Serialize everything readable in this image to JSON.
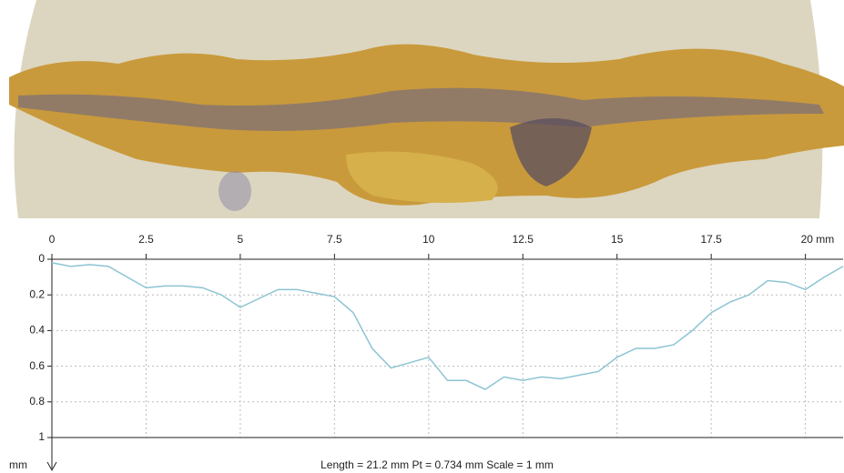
{
  "chart_data": {
    "type": "line",
    "x_axis_position": "top",
    "y_inverted": true,
    "xlim": [
      0,
      21
    ],
    "ylim": [
      0,
      1
    ],
    "xticks": [
      0,
      2.5,
      5,
      7.5,
      10,
      12.5,
      15,
      17.5,
      {
        "value": 20,
        "label": "20 mm"
      }
    ],
    "yticks": [
      0,
      0.2,
      0.4,
      0.6,
      0.8,
      1
    ],
    "y_unit_label": "mm",
    "footer": "Length = 21.2 mm  Pt = 0.734 mm  Scale = 1 mm",
    "grid": true,
    "x": [
      0,
      0.5,
      1,
      1.5,
      2,
      2.5,
      3,
      3.5,
      4,
      4.5,
      5,
      5.5,
      6,
      6.5,
      7,
      7.5,
      8,
      8.5,
      9,
      9.5,
      10,
      10.5,
      11,
      11.5,
      12,
      12.5,
      13,
      13.5,
      14,
      14.5,
      15,
      15.5,
      16,
      16.5,
      17,
      17.5,
      18,
      18.5,
      19,
      19.5,
      20,
      20.5,
      21
    ],
    "series": [
      {
        "color": "#8cc4d4",
        "values": [
          0.02,
          0.04,
          0.03,
          0.04,
          0.1,
          0.16,
          0.15,
          0.15,
          0.16,
          0.2,
          0.27,
          0.22,
          0.17,
          0.17,
          0.19,
          0.21,
          0.3,
          0.5,
          0.61,
          0.58,
          0.55,
          0.68,
          0.68,
          0.73,
          0.66,
          0.68,
          0.66,
          0.67,
          0.65,
          0.63,
          0.55,
          0.5,
          0.5,
          0.48,
          0.4,
          0.3,
          0.24,
          0.2,
          0.12,
          0.13,
          0.17,
          0.1,
          0.04
        ]
      }
    ]
  }
}
